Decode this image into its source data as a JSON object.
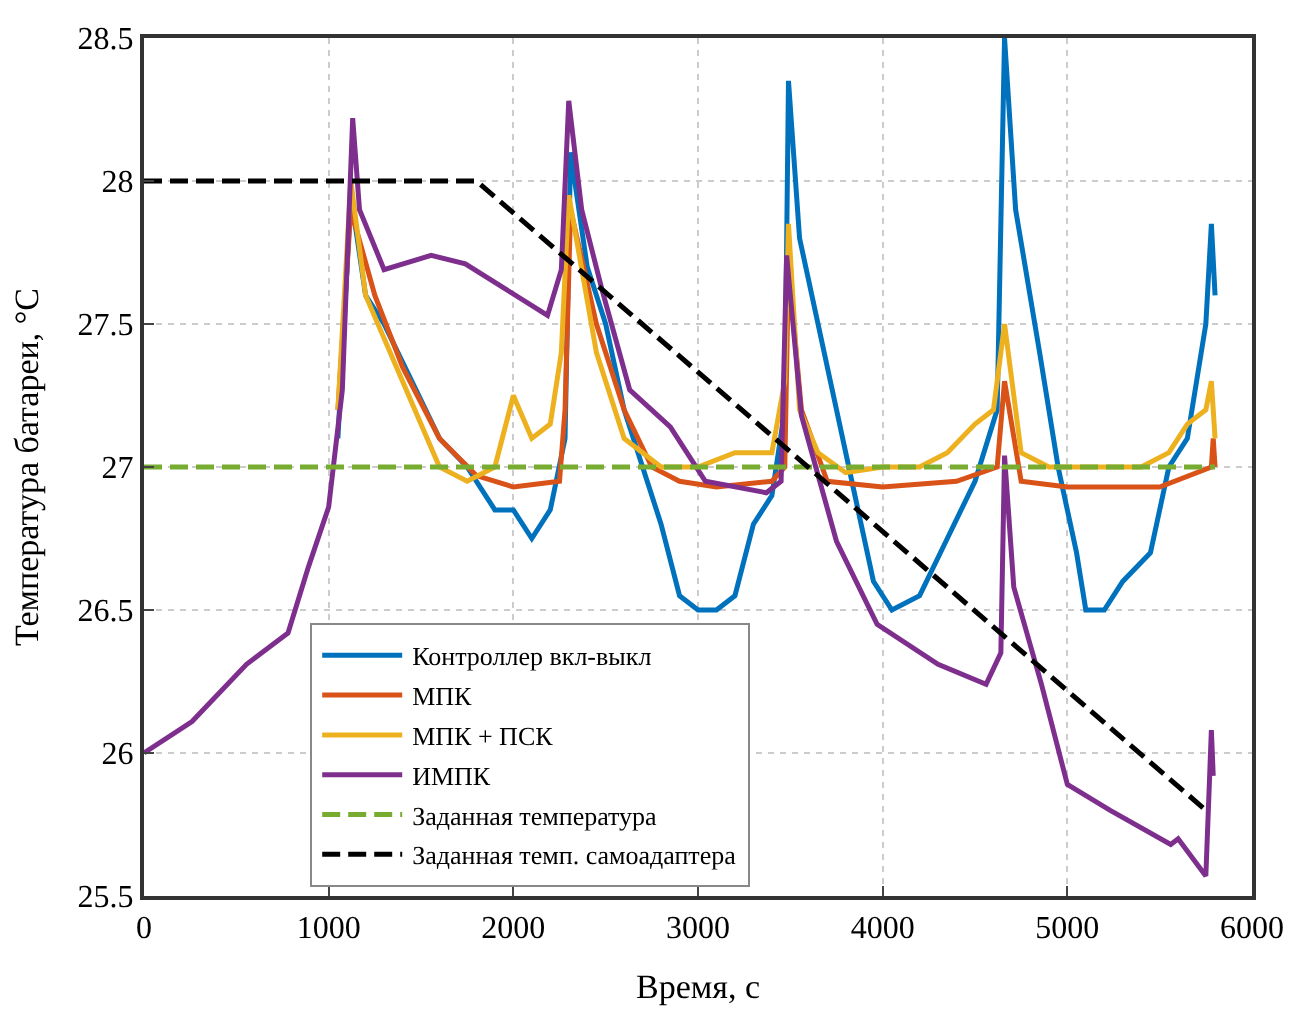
{
  "chart_data": {
    "type": "line",
    "xlabel": "Время, с",
    "ylabel": "Температура батареи, °C",
    "xlim": [
      0,
      6000
    ],
    "xticks": [
      0,
      1000,
      2000,
      3000,
      4000,
      5000,
      6000
    ],
    "ylim": [
      25.5,
      28.5
    ],
    "yticks": [
      25.5,
      26,
      26.5,
      27,
      27.5,
      28,
      28.5
    ],
    "grid": true,
    "legend": "bottom",
    "line_style": "solid",
    "series": [
      {
        "name": "Контроллер вкл-выкл",
        "color": "#0072bd",
        "x": [
          1050,
          1120,
          1200,
          1300,
          1450,
          1600,
          1750,
          1900,
          2000,
          2100,
          2200,
          2280,
          2310,
          2400,
          2500,
          2600,
          2700,
          2800,
          2900,
          3000,
          3100,
          3200,
          3300,
          3400,
          3470,
          3490,
          3550,
          3650,
          3750,
          3850,
          3950,
          4050,
          4200,
          4350,
          4500,
          4620,
          4660,
          4720,
          4850,
          4950,
          5050,
          5100,
          5200,
          5300,
          5450,
          5550,
          5650,
          5750,
          5780,
          5800
        ],
        "values": [
          27.1,
          27.95,
          27.6,
          27.5,
          27.3,
          27.1,
          27.0,
          26.85,
          26.85,
          26.75,
          26.85,
          27.1,
          28.1,
          27.7,
          27.5,
          27.2,
          27.0,
          26.8,
          26.55,
          26.5,
          26.5,
          26.55,
          26.8,
          26.9,
          27.2,
          28.35,
          27.8,
          27.5,
          27.2,
          26.9,
          26.6,
          26.5,
          26.55,
          26.75,
          26.95,
          27.2,
          28.5,
          27.9,
          27.4,
          27.0,
          26.7,
          26.5,
          26.5,
          26.6,
          26.7,
          27.0,
          27.1,
          27.5,
          27.85,
          27.6
        ]
      },
      {
        "name": "МПК",
        "color": "#d95319",
        "x": [
          1050,
          1120,
          1250,
          1400,
          1600,
          1800,
          2000,
          2250,
          2280,
          2310,
          2450,
          2600,
          2750,
          2900,
          3100,
          3400,
          3470,
          3490,
          3560,
          3700,
          4000,
          4400,
          4620,
          4660,
          4750,
          5000,
          5500,
          5780,
          5790,
          5800
        ],
        "values": [
          27.2,
          27.9,
          27.6,
          27.35,
          27.1,
          26.97,
          26.93,
          26.95,
          27.2,
          27.9,
          27.5,
          27.2,
          27.0,
          26.95,
          26.93,
          26.95,
          27.0,
          27.7,
          27.2,
          26.95,
          26.93,
          26.95,
          27.0,
          27.3,
          26.95,
          26.93,
          26.93,
          27.0,
          27.1,
          27.0
        ]
      },
      {
        "name": "МПК + ПСК",
        "color": "#edb120",
        "x": [
          1050,
          1120,
          1200,
          1400,
          1600,
          1750,
          1900,
          2000,
          2100,
          2200,
          2260,
          2300,
          2450,
          2600,
          2800,
          3000,
          3200,
          3400,
          3470,
          3490,
          3550,
          3650,
          3800,
          4000,
          4200,
          4350,
          4500,
          4600,
          4660,
          4750,
          4900,
          5200,
          5400,
          5550,
          5650,
          5750,
          5780,
          5800
        ],
        "values": [
          27.2,
          28.0,
          27.6,
          27.3,
          27.0,
          26.95,
          27.0,
          27.25,
          27.1,
          27.15,
          27.4,
          27.95,
          27.4,
          27.1,
          27.0,
          27.0,
          27.05,
          27.05,
          27.3,
          27.85,
          27.2,
          27.05,
          26.98,
          27.0,
          27.0,
          27.05,
          27.15,
          27.2,
          27.5,
          27.05,
          27.0,
          27.0,
          27.0,
          27.05,
          27.15,
          27.2,
          27.3,
          27.1
        ]
      },
      {
        "name": "ИМПК",
        "color": "#7e2f8e",
        "x": [
          0,
          260,
          555,
          780,
          890,
          1000,
          1074,
          1130,
          1167,
          1300,
          1555,
          1740,
          1963,
          2185,
          2260,
          2300,
          2370,
          2480,
          2630,
          2850,
          3040,
          3370,
          3450,
          3480,
          3560,
          3750,
          3970,
          4300,
          4560,
          4640,
          4660,
          4710,
          4860,
          5000,
          5230,
          5560,
          5600,
          5750,
          5780,
          5790
        ],
        "values": [
          26.0,
          26.11,
          26.31,
          26.42,
          26.65,
          26.86,
          27.27,
          28.22,
          27.9,
          27.69,
          27.74,
          27.71,
          27.62,
          27.53,
          27.69,
          28.28,
          27.9,
          27.62,
          27.27,
          27.14,
          26.95,
          26.91,
          26.95,
          27.74,
          27.18,
          26.74,
          26.45,
          26.31,
          26.24,
          26.35,
          27.04,
          26.58,
          26.24,
          25.89,
          25.8,
          25.68,
          25.7,
          25.57,
          26.08,
          25.92
        ]
      },
      {
        "name": "Заданная температура",
        "color": "#77ac30",
        "line_style": "dashed",
        "x": [
          0,
          5800
        ],
        "values": [
          27,
          27
        ]
      },
      {
        "name": "Заданная темп. самоадаптера",
        "color": "#000000",
        "line_style": "dashed",
        "x": [
          0,
          1800,
          5750
        ],
        "values": [
          28,
          28,
          25.8
        ]
      }
    ]
  }
}
